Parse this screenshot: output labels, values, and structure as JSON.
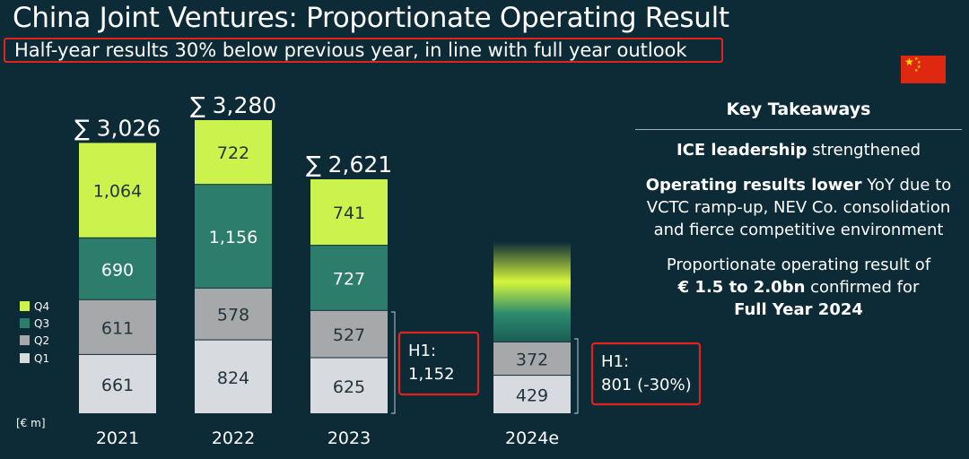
{
  "title": "China Joint Ventures: Proportionate Operating Result",
  "subtitle": "Half-year results 30% below previous year, in line with full year outlook",
  "flag_icon": "china-flag-icon",
  "colors": {
    "background": "#0d2b36",
    "q1": "#d7dbe0",
    "q2": "#a6a8aa",
    "q3": "#2c7d6c",
    "q4": "#ccf24d",
    "highlight_border": "#e3221e"
  },
  "takeaways": {
    "heading": "Key Takeaways",
    "p1_bold": "ICE leadership",
    "p1_rest": " strengthened",
    "p2_bold": "Operating results lower",
    "p2_rest": " YoY due to VCTC ramp-up, NEV Co. consolidation and fierce competitive environment",
    "p3_a": "Proportionate operating result of ",
    "p3_bold1": "€ 1.5 to 2.0bn",
    "p3_b": " confirmed for ",
    "p3_bold2": "Full Year 2024"
  },
  "chart_data": {
    "type": "bar",
    "stacked": true,
    "unit_label": "[€ m]",
    "categories": [
      "2021",
      "2022",
      "2023",
      "2024e"
    ],
    "series": [
      {
        "name": "Q1",
        "values": [
          661,
          824,
          625,
          429
        ]
      },
      {
        "name": "Q2",
        "values": [
          611,
          578,
          527,
          372
        ]
      },
      {
        "name": "Q3",
        "values": [
          690,
          1156,
          727,
          null
        ]
      },
      {
        "name": "Q4",
        "values": [
          1064,
          722,
          741,
          null
        ]
      }
    ],
    "totals": [
      "∑ 3,026",
      "∑ 3,280",
      "∑ 2,621",
      null
    ],
    "outlook_bar_2024e": "gradient placeholder for H2 outlook",
    "legend": [
      "Q4",
      "Q3",
      "Q2",
      "Q1"
    ],
    "annotations": [
      {
        "category": "2023",
        "label_line1": "H1:",
        "label_line2": "1,152"
      },
      {
        "category": "2024e",
        "label_line1": "H1:",
        "label_line2": "801 (-30%)"
      }
    ]
  }
}
